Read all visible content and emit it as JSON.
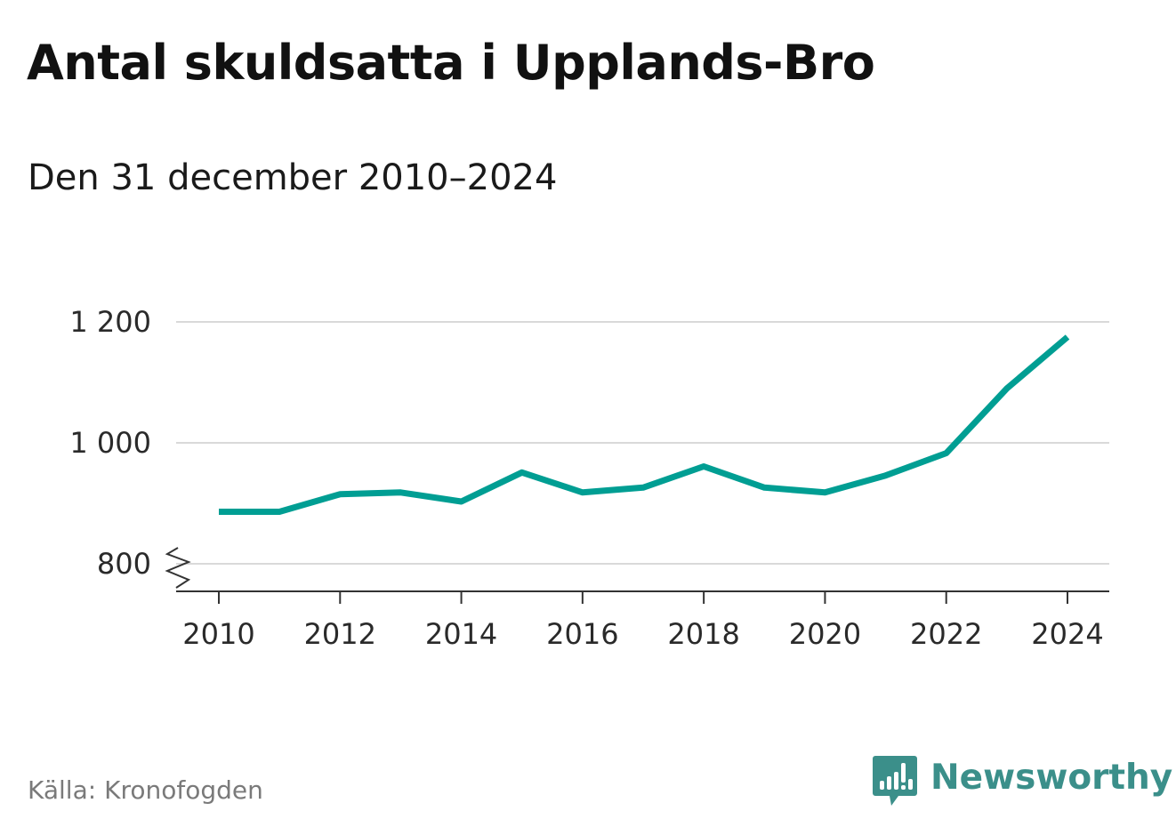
{
  "title": "Antal skuldsatta i Upplands-Bro",
  "subtitle": "Den 31 december 2010–2024",
  "source": "Källa: Kronofogden",
  "brand": {
    "name": "Newsworthy",
    "logo_icon": "newsworthy-logo-icon",
    "color": "#3b8f8a"
  },
  "colors": {
    "line": "#009e93",
    "grid": "#d9d9d9",
    "axis": "#333333"
  },
  "chart_data": {
    "type": "line",
    "x": [
      2010,
      2011,
      2012,
      2013,
      2014,
      2015,
      2016,
      2017,
      2018,
      2019,
      2020,
      2021,
      2022,
      2023,
      2024
    ],
    "series": [
      {
        "values": [
          886,
          886,
          915,
          918,
          903,
          951,
          918,
          926,
          961,
          926,
          918,
          946,
          983,
          1090,
          1175
        ]
      }
    ],
    "x_ticks": [
      2010,
      2012,
      2014,
      2016,
      2018,
      2020,
      2022,
      2024
    ],
    "x_tick_labels": [
      "2010",
      "2012",
      "2014",
      "2016",
      "2018",
      "2020",
      "2022",
      "2024"
    ],
    "y_ticks": [
      800,
      1000,
      1200
    ],
    "y_tick_labels": [
      "800",
      "1 000",
      "1 200"
    ],
    "ylim": [
      800,
      1200
    ],
    "xlim": [
      2010,
      2024
    ],
    "y_axis_break": true,
    "grid": "horizontal",
    "legend": "none"
  }
}
